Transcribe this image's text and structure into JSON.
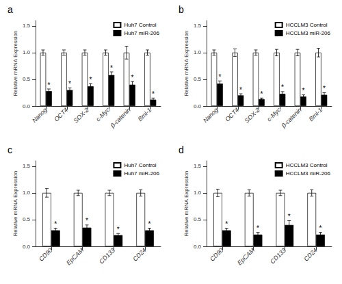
{
  "chart_data": [
    {
      "type": "bar",
      "title": "a",
      "categories": [
        "Nanog",
        "OCT4",
        "SOX-2",
        "c-Myc",
        "β-catenin",
        "Bmi-1"
      ],
      "series": [
        {
          "name": "Huh7 Control",
          "color": "white",
          "values": [
            1.0,
            1.0,
            1.0,
            1.0,
            1.0,
            1.0
          ],
          "errors": [
            0.05,
            0.05,
            0.05,
            0.05,
            0.12,
            0.05
          ]
        },
        {
          "name": "Huh7 miR-206",
          "color": "black",
          "values": [
            0.28,
            0.3,
            0.37,
            0.58,
            0.4,
            0.12
          ],
          "errors": [
            0.04,
            0.04,
            0.05,
            0.06,
            0.06,
            0.03
          ]
        }
      ],
      "ylabel": "Relative mRNA Expression",
      "ylim": [
        0,
        1.6
      ],
      "yticks": [
        {
          "value": 0,
          "label": "0.0"
        },
        0.5,
        {
          "value": 1,
          "label": "1.0"
        },
        1.5
      ],
      "grid": false,
      "legend": "upper right",
      "annotations": [
        {
          "text": "*",
          "series": "Huh7 miR-206",
          "category": "Nanog"
        },
        {
          "text": "*",
          "series": "Huh7 miR-206",
          "category": "OCT4"
        },
        {
          "text": "*",
          "series": "Huh7 miR-206",
          "category": "SOX-2"
        },
        {
          "text": "*",
          "series": "Huh7 miR-206",
          "category": "c-Myc"
        },
        {
          "text": "*",
          "series": "Huh7 miR-206",
          "category": "β-catenin"
        },
        {
          "text": "*",
          "series": "Huh7 miR-206",
          "category": "Bmi-1"
        }
      ]
    },
    {
      "type": "bar",
      "title": "b",
      "categories": [
        "Nanog",
        "OCT4",
        "SOX-2",
        "c-Myc",
        "β-catenin",
        "Bmi-1"
      ],
      "series": [
        {
          "name": "HCCLM3 Control",
          "color": "white",
          "values": [
            1.0,
            1.0,
            1.0,
            1.0,
            1.0,
            1.0
          ],
          "errors": [
            0.05,
            0.07,
            0.05,
            0.06,
            0.06,
            0.08
          ]
        },
        {
          "name": "HCCLM3 miR-206",
          "color": "black",
          "values": [
            0.42,
            0.2,
            0.13,
            0.23,
            0.18,
            0.21
          ],
          "errors": [
            0.05,
            0.03,
            0.02,
            0.04,
            0.03,
            0.04
          ]
        }
      ],
      "ylabel": "Relative mRNA Expression",
      "ylim": [
        0,
        1.6
      ],
      "yticks": [
        {
          "value": 0,
          "label": "0.0"
        },
        0.5,
        {
          "value": 1,
          "label": "1.0"
        },
        1.5
      ],
      "grid": false,
      "legend": "upper right",
      "annotations": [
        {
          "text": "*",
          "series": "HCCLM3 miR-206",
          "category": "Nanog"
        },
        {
          "text": "*",
          "series": "HCCLM3 miR-206",
          "category": "OCT4"
        },
        {
          "text": "*",
          "series": "HCCLM3 miR-206",
          "category": "SOX-2"
        },
        {
          "text": "*",
          "series": "HCCLM3 miR-206",
          "category": "c-Myc"
        },
        {
          "text": "*",
          "series": "HCCLM3 miR-206",
          "category": "β-catenin"
        },
        {
          "text": "*",
          "series": "HCCLM3 miR-206",
          "category": "Bmi-1"
        }
      ]
    },
    {
      "type": "bar",
      "title": "c",
      "categories": [
        "CD90",
        "EpCAM",
        "CD133",
        "CD24"
      ],
      "series": [
        {
          "name": "Huh7 Control",
          "color": "white",
          "values": [
            1.0,
            1.0,
            1.0,
            1.0
          ],
          "errors": [
            0.08,
            0.05,
            0.05,
            0.06
          ]
        },
        {
          "name": "Huh7 miR-206",
          "color": "black",
          "values": [
            0.3,
            0.35,
            0.21,
            0.3
          ],
          "errors": [
            0.04,
            0.05,
            0.03,
            0.04
          ]
        }
      ],
      "ylabel": "Relative mRNA Expression",
      "ylim": [
        0,
        1.6
      ],
      "yticks": [
        {
          "value": 0,
          "label": "0.0"
        },
        0.5,
        {
          "value": 1,
          "label": "1.0"
        },
        1.5
      ],
      "grid": false,
      "legend": "upper right",
      "annotations": [
        {
          "text": "*",
          "series": "Huh7 miR-206",
          "category": "CD90"
        },
        {
          "text": "*",
          "series": "Huh7 miR-206",
          "category": "EpCAM"
        },
        {
          "text": "*",
          "series": "Huh7 miR-206",
          "category": "CD133"
        },
        {
          "text": "*",
          "series": "Huh7 miR-206",
          "category": "CD24"
        }
      ]
    },
    {
      "type": "bar",
      "title": "d",
      "categories": [
        "CD90",
        "EpCAM",
        "CD133",
        "CD24"
      ],
      "series": [
        {
          "name": "HCCLM3 Control",
          "color": "white",
          "values": [
            1.0,
            1.0,
            1.0,
            1.0
          ],
          "errors": [
            0.07,
            0.06,
            0.05,
            0.06
          ]
        },
        {
          "name": "HCCLM3 miR-206",
          "color": "black",
          "values": [
            0.3,
            0.22,
            0.4,
            0.22
          ],
          "errors": [
            0.04,
            0.04,
            0.08,
            0.04
          ]
        }
      ],
      "ylabel": "Relative mRNA Expression",
      "ylim": [
        0,
        1.6
      ],
      "yticks": [
        {
          "value": 0,
          "label": "0.0"
        },
        0.5,
        {
          "value": 1,
          "label": "1.0"
        },
        1.5
      ],
      "grid": false,
      "legend": "upper right",
      "annotations": [
        {
          "text": "*",
          "series": "HCCLM3 miR-206",
          "category": "CD90"
        },
        {
          "text": "*",
          "series": "HCCLM3 miR-206",
          "category": "EpCAM"
        },
        {
          "text": "*",
          "series": "HCCLM3 miR-206",
          "category": "CD133"
        },
        {
          "text": "*",
          "series": "HCCLM3 miR-206",
          "category": "CD24"
        }
      ]
    }
  ]
}
